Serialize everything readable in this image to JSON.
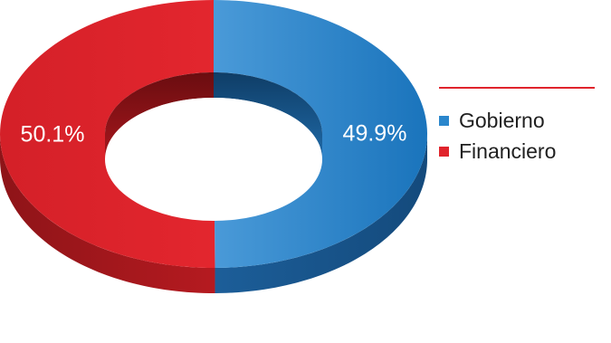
{
  "chart_data": {
    "type": "pie",
    "variant": "3d-donut",
    "title": "",
    "series": [
      {
        "name": "Gobierno",
        "value": 49.9,
        "label": "49.9%",
        "color": "#2a86cc"
      },
      {
        "name": "Financiero",
        "value": 50.1,
        "label": "50.1%",
        "color": "#e0242c"
      }
    ],
    "legend": {
      "placement": "right",
      "items": [
        {
          "label": "Gobierno",
          "color": "#2a86cc"
        },
        {
          "label": "Financiero",
          "color": "#e0242c"
        }
      ]
    },
    "accent_rule_color": "#e0242c"
  }
}
